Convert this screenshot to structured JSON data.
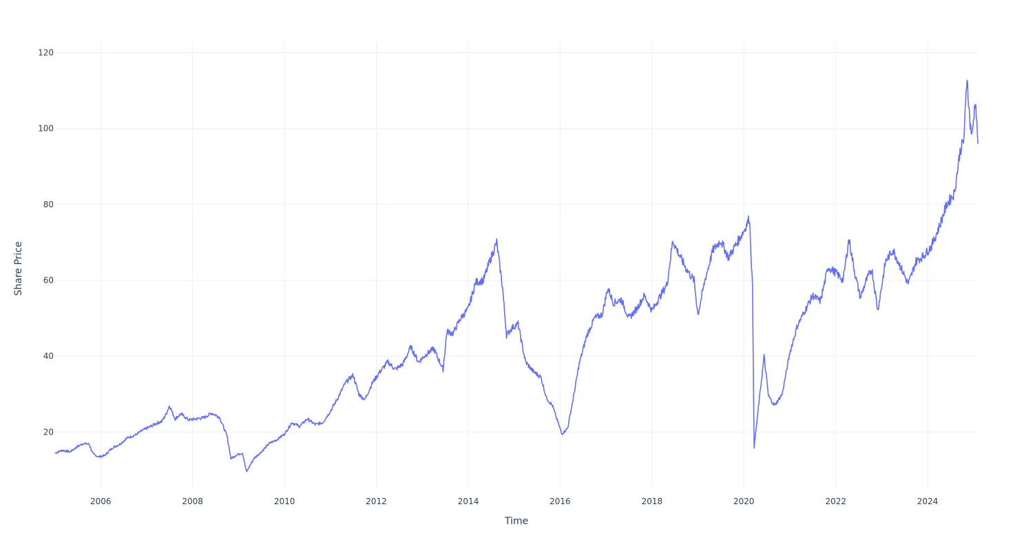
{
  "chart_data": {
    "type": "line",
    "title": "",
    "xlabel": "Time",
    "ylabel": "Share Price",
    "grid": true,
    "legend": "none",
    "x_range": [
      "2005-01-03",
      "2025-02-04"
    ],
    "ylim": [
      5,
      123
    ],
    "x_ticks": [
      "2006",
      "2008",
      "2010",
      "2012",
      "2014",
      "2016",
      "2018",
      "2020",
      "2022",
      "2024"
    ],
    "y_ticks": [
      20,
      40,
      60,
      80,
      100,
      120
    ],
    "colors": {
      "line": "#636efa",
      "grid": "#ebf0f8",
      "text": "#2a3f5f"
    },
    "series": [
      {
        "x": [
          "2005-01-03",
          "2005-03-01",
          "2005-05-01",
          "2005-07-01",
          "2005-08-15",
          "2005-10-01",
          "2005-11-01",
          "2005-12-15",
          "2006-02-01",
          "2006-04-01",
          "2006-06-01",
          "2006-08-01",
          "2006-10-01",
          "2006-12-01",
          "2007-02-01",
          "2007-04-01",
          "2007-05-01",
          "2007-06-01",
          "2007-07-01",
          "2007-08-15",
          "2007-10-01",
          "2007-12-01",
          "2008-02-01",
          "2008-04-01",
          "2008-06-01",
          "2008-08-01",
          "2008-10-01",
          "2008-11-01",
          "2008-12-15",
          "2009-02-01",
          "2009-03-05",
          "2009-05-01",
          "2009-07-01",
          "2009-09-01",
          "2009-11-01",
          "2010-01-01",
          "2010-03-01",
          "2010-05-01",
          "2010-07-01",
          "2010-09-01",
          "2010-11-01",
          "2011-01-01",
          "2011-03-01",
          "2011-05-01",
          "2011-07-01",
          "2011-08-15",
          "2011-10-01",
          "2011-12-01",
          "2012-02-01",
          "2012-04-01",
          "2012-06-01",
          "2012-08-01",
          "2012-10-01",
          "2012-12-01",
          "2013-02-01",
          "2013-04-01",
          "2013-06-15",
          "2013-07-15",
          "2013-09-01",
          "2013-11-01",
          "2014-01-01",
          "2014-03-01",
          "2014-05-01",
          "2014-07-01",
          "2014-08-15",
          "2014-10-01",
          "2014-11-01",
          "2014-12-15",
          "2015-02-01",
          "2015-04-01",
          "2015-06-01",
          "2015-08-01",
          "2015-09-15",
          "2015-11-01",
          "2016-01-15",
          "2016-03-01",
          "2016-04-15",
          "2016-06-01",
          "2016-08-01",
          "2016-10-01",
          "2016-12-01",
          "2017-01-15",
          "2017-03-01",
          "2017-05-01",
          "2017-07-01",
          "2017-09-01",
          "2017-11-01",
          "2018-01-01",
          "2018-03-01",
          "2018-05-01",
          "2018-06-15",
          "2018-08-01",
          "2018-10-01",
          "2018-12-01",
          "2019-01-01",
          "2019-03-01",
          "2019-05-01",
          "2019-07-01",
          "2019-09-01",
          "2019-11-01",
          "2020-01-01",
          "2020-02-15",
          "2020-03-10",
          "2020-03-23",
          "2020-05-01",
          "2020-06-10",
          "2020-07-15",
          "2020-09-01",
          "2020-11-01",
          "2021-01-01",
          "2021-03-01",
          "2021-05-01",
          "2021-07-01",
          "2021-09-01",
          "2021-11-01",
          "2022-01-01",
          "2022-03-01",
          "2022-04-15",
          "2022-06-01",
          "2022-07-15",
          "2022-09-01",
          "2022-10-15",
          "2022-12-01",
          "2023-02-01",
          "2023-04-01",
          "2023-06-01",
          "2023-08-01",
          "2023-10-01",
          "2023-12-01",
          "2024-02-01",
          "2024-04-01",
          "2024-06-01",
          "2024-08-01",
          "2024-09-15",
          "2024-10-15",
          "2024-11-10",
          "2024-12-01",
          "2024-12-20",
          "2025-01-15",
          "2025-02-04"
        ],
        "y": [
          14.5,
          15.2,
          14.8,
          16.2,
          17.0,
          16.8,
          14.2,
          13.5,
          13.8,
          15.8,
          16.8,
          18.5,
          19.2,
          20.5,
          21.5,
          22.5,
          22.8,
          24.5,
          27.0,
          23.5,
          24.8,
          23.2,
          23.5,
          23.8,
          25.0,
          24.0,
          19.0,
          13.0,
          14.0,
          14.5,
          9.5,
          13.0,
          14.8,
          17.0,
          18.0,
          19.5,
          22.5,
          21.5,
          23.5,
          22.0,
          22.5,
          25.5,
          29.0,
          33.0,
          35.0,
          30.0,
          28.5,
          33.0,
          36.0,
          38.5,
          36.5,
          38.0,
          42.5,
          38.5,
          40.5,
          42.0,
          36.5,
          46.5,
          46.0,
          50.0,
          52.5,
          59.5,
          60.0,
          66.0,
          70.0,
          58.0,
          45.5,
          47.5,
          48.5,
          38.5,
          36.0,
          34.5,
          29.0,
          27.0,
          19.5,
          21.0,
          29.0,
          38.0,
          45.5,
          50.0,
          51.0,
          58.0,
          54.0,
          55.0,
          50.0,
          52.5,
          56.0,
          52.0,
          55.5,
          59.0,
          70.5,
          67.0,
          63.0,
          60.0,
          51.0,
          60.5,
          68.0,
          70.5,
          66.0,
          69.5,
          73.0,
          76.5,
          58.0,
          16.0,
          28.0,
          40.0,
          29.5,
          27.0,
          30.0,
          41.0,
          48.0,
          52.0,
          56.0,
          54.5,
          63.5,
          62.0,
          60.0,
          71.0,
          62.0,
          55.5,
          60.0,
          63.0,
          52.0,
          65.0,
          68.0,
          63.5,
          59.0,
          65.0,
          66.5,
          69.0,
          74.0,
          80.0,
          83.0,
          94.0,
          97.0,
          114.0,
          102.0,
          98.0,
          108.0,
          96.0
        ]
      }
    ]
  }
}
